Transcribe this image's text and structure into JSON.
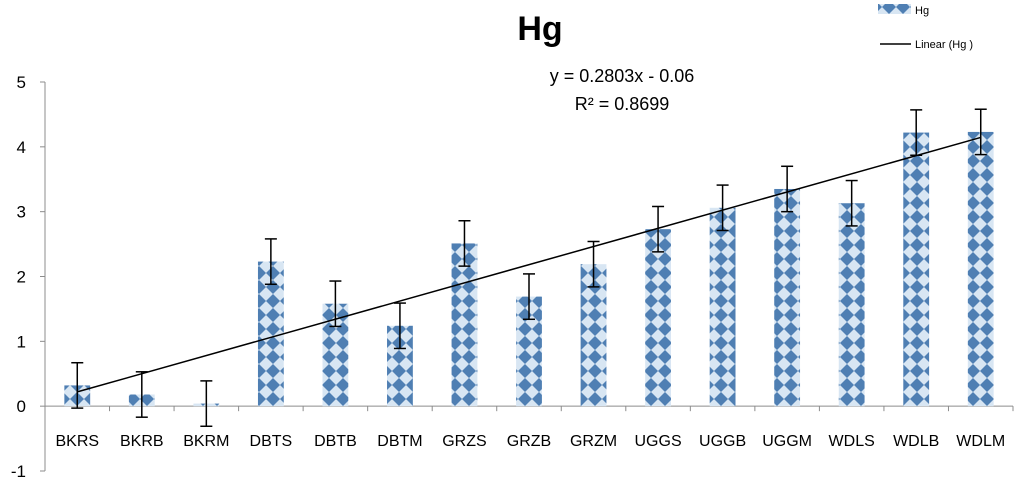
{
  "chart_data": {
    "type": "bar",
    "title": "Hg",
    "xlabel": "",
    "ylabel": "",
    "categories": [
      "BKRS",
      "BKRB",
      "BKRM",
      "DBTS",
      "DBTB",
      "DBTM",
      "GRZS",
      "GRZB",
      "GRZM",
      "UGGS",
      "UGGB",
      "UGGM",
      "WDLS",
      "WDLB",
      "WDLM"
    ],
    "series": [
      {
        "name": "Hg",
        "values": [
          0.32,
          0.18,
          0.04,
          2.23,
          1.58,
          1.24,
          2.51,
          1.69,
          2.19,
          2.73,
          3.06,
          3.35,
          3.13,
          4.22,
          4.23
        ],
        "error": [
          0.35,
          0.35,
          0.35,
          0.35,
          0.35,
          0.35,
          0.35,
          0.35,
          0.35,
          0.35,
          0.35,
          0.35,
          0.35,
          0.35,
          0.35
        ]
      }
    ],
    "trendline": {
      "name": "Linear (Hg )",
      "slope": 0.2803,
      "intercept": -0.06,
      "equation": "y = 0.2803x - 0.06",
      "r2": "R² = 0.8699"
    },
    "ylim": [
      -1,
      5
    ],
    "yticks": [
      "-1",
      "0",
      "1",
      "2",
      "3",
      "4",
      "5"
    ],
    "grid": false,
    "legend_position": "top-right",
    "colors": {
      "bar_fill": "#4f7fb3",
      "bar_light": "#d8e6f3",
      "line": "#000000"
    }
  }
}
